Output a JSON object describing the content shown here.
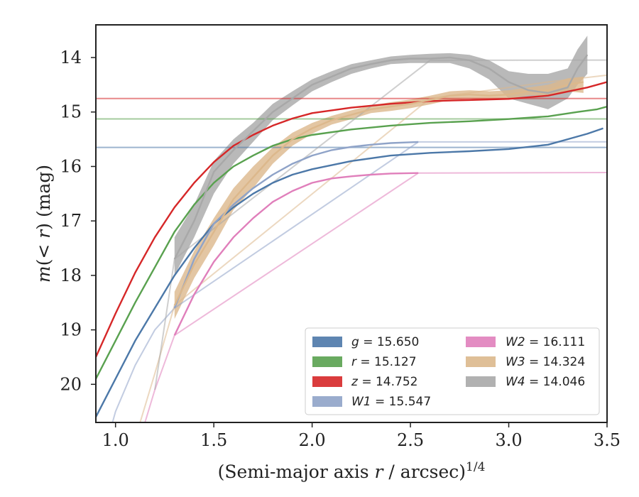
{
  "chart_data": {
    "type": "line",
    "xlabel": "(Semi-major axis r / arcsec)^{1/4}",
    "ylabel": "m(< r) (mag)",
    "xlim": [
      0.9,
      3.5
    ],
    "ylim": [
      20.7,
      13.4
    ],
    "y_inverted": true,
    "xticks": [
      "1.0",
      "1.5",
      "2.0",
      "2.5",
      "3.0",
      "3.5"
    ],
    "xtick_values": [
      1.0,
      1.5,
      2.0,
      2.5,
      3.0,
      3.5
    ],
    "yticks": [
      "14",
      "15",
      "16",
      "17",
      "18",
      "19",
      "20"
    ],
    "ytick_values": [
      14,
      15,
      16,
      17,
      18,
      19,
      20
    ],
    "legend_position": "lower-right",
    "legend_columns": 2,
    "series": [
      {
        "name": "g = 15.650",
        "color": "#4c78a8",
        "legend_label": "g = 15.650",
        "total": 15.65,
        "x": [
          0.9,
          1.0,
          1.1,
          1.2,
          1.3,
          1.4,
          1.5,
          1.6,
          1.7,
          1.8,
          1.9,
          2.0,
          2.2,
          2.4,
          2.6,
          2.8,
          3.0,
          3.2,
          3.3,
          3.4,
          3.48
        ],
        "y": [
          20.6,
          19.9,
          19.2,
          18.6,
          18.0,
          17.5,
          17.05,
          16.75,
          16.5,
          16.3,
          16.15,
          16.05,
          15.9,
          15.8,
          15.75,
          15.72,
          15.68,
          15.6,
          15.5,
          15.4,
          15.3
        ]
      },
      {
        "name": "r = 15.127",
        "color": "#59a14f",
        "legend_label": "r = 15.127",
        "total": 15.127,
        "x": [
          0.9,
          1.0,
          1.1,
          1.2,
          1.3,
          1.4,
          1.5,
          1.6,
          1.7,
          1.8,
          1.9,
          2.0,
          2.2,
          2.4,
          2.6,
          2.8,
          3.0,
          3.2,
          3.35,
          3.45,
          3.5
        ],
        "y": [
          19.9,
          19.2,
          18.5,
          17.85,
          17.2,
          16.7,
          16.3,
          16.0,
          15.8,
          15.62,
          15.5,
          15.42,
          15.32,
          15.25,
          15.2,
          15.17,
          15.13,
          15.08,
          15.0,
          14.95,
          14.9
        ]
      },
      {
        "name": "z = 14.752",
        "color": "#d62728",
        "legend_label": "z = 14.752",
        "total": 14.752,
        "x": [
          0.9,
          1.0,
          1.1,
          1.2,
          1.3,
          1.4,
          1.5,
          1.6,
          1.7,
          1.8,
          1.9,
          2.0,
          2.2,
          2.4,
          2.6,
          2.8,
          3.0,
          3.2,
          3.4,
          3.5
        ],
        "y": [
          19.5,
          18.7,
          17.95,
          17.3,
          16.75,
          16.3,
          15.92,
          15.62,
          15.42,
          15.25,
          15.12,
          15.02,
          14.92,
          14.85,
          14.8,
          14.78,
          14.76,
          14.7,
          14.55,
          14.45
        ]
      },
      {
        "name": "W1 = 15.547",
        "color": "#8fa3c8",
        "legend_label": "W1 = 15.547",
        "total": 15.547,
        "x": [
          1.3,
          1.4,
          1.5,
          1.6,
          1.7,
          1.8,
          1.9,
          2.0,
          2.1,
          2.2,
          2.3,
          2.4,
          2.54
        ],
        "y": [
          18.6,
          17.7,
          17.05,
          16.7,
          16.4,
          16.15,
          15.95,
          15.8,
          15.7,
          15.64,
          15.6,
          15.57,
          15.55
        ]
      },
      {
        "name": "W2 = 16.111",
        "color": "#e07fbb",
        "legend_label": "W2 = 16.111",
        "total": 16.111,
        "x": [
          1.3,
          1.4,
          1.5,
          1.6,
          1.7,
          1.8,
          1.9,
          2.0,
          2.1,
          2.2,
          2.3,
          2.4,
          2.54
        ],
        "y": [
          19.1,
          18.35,
          17.75,
          17.3,
          16.95,
          16.65,
          16.45,
          16.3,
          16.22,
          16.18,
          16.15,
          16.13,
          16.12
        ]
      },
      {
        "name": "W3 = 14.324",
        "color": "#dcb88c",
        "legend_label": "W3 = 14.324",
        "total": 14.324,
        "x": [
          1.3,
          1.4,
          1.5,
          1.6,
          1.7,
          1.8,
          1.9,
          2.0,
          2.1,
          2.2,
          2.3,
          2.4,
          2.5,
          2.6,
          2.7,
          2.8,
          2.9,
          3.0,
          3.1,
          3.2,
          3.3,
          3.38
        ],
        "y": [
          18.55,
          17.8,
          17.2,
          16.6,
          16.2,
          15.8,
          15.5,
          15.3,
          15.15,
          15.05,
          14.95,
          14.9,
          14.85,
          14.78,
          14.7,
          14.68,
          14.7,
          14.68,
          14.62,
          14.6,
          14.5,
          14.45
        ]
      },
      {
        "name": "W4 = 14.046",
        "color": "#a8a8a8",
        "legend_label": "W4 = 14.046",
        "total": 14.046,
        "x": [
          1.3,
          1.4,
          1.5,
          1.6,
          1.7,
          1.8,
          1.9,
          2.0,
          2.1,
          2.2,
          2.3,
          2.4,
          2.5,
          2.6,
          2.7,
          2.8,
          2.9,
          3.0,
          3.1,
          3.2,
          3.3,
          3.35,
          3.4
        ],
        "y": [
          17.7,
          17.0,
          16.1,
          15.7,
          15.35,
          15.0,
          14.75,
          14.5,
          14.35,
          14.2,
          14.12,
          14.05,
          14.02,
          14.02,
          14.0,
          14.05,
          14.2,
          14.45,
          14.6,
          14.65,
          14.55,
          14.2,
          13.95
        ]
      }
    ],
    "bands": [
      {
        "series": "W4 = 14.046",
        "x": [
          1.3,
          1.4,
          1.5,
          1.6,
          1.7,
          1.8,
          1.9,
          2.0,
          2.1,
          2.2,
          2.3,
          2.4,
          2.5,
          2.6,
          2.7,
          2.8,
          2.9,
          3.0,
          3.1,
          3.2,
          3.3,
          3.35,
          3.4
        ],
        "lower": [
          17.3,
          16.7,
          15.9,
          15.5,
          15.2,
          14.85,
          14.62,
          14.4,
          14.25,
          14.12,
          14.05,
          13.98,
          13.95,
          13.93,
          13.92,
          13.95,
          14.05,
          14.25,
          14.3,
          14.3,
          14.2,
          13.85,
          13.6
        ],
        "upper": [
          18.0,
          17.3,
          16.5,
          15.95,
          15.55,
          15.15,
          14.88,
          14.62,
          14.45,
          14.3,
          14.2,
          14.12,
          14.1,
          14.1,
          14.1,
          14.2,
          14.4,
          14.75,
          14.85,
          14.95,
          14.75,
          14.5,
          14.3
        ]
      },
      {
        "series": "W3 = 14.324",
        "x": [
          1.3,
          1.4,
          1.5,
          1.6,
          1.7,
          1.8,
          1.9,
          2.0,
          2.1,
          2.2,
          2.3,
          2.4,
          2.5,
          2.6,
          2.7,
          2.8,
          2.9,
          3.0,
          3.1,
          3.2,
          3.3,
          3.38
        ],
        "lower": [
          18.3,
          17.55,
          16.95,
          16.4,
          16.0,
          15.65,
          15.38,
          15.2,
          15.07,
          14.97,
          14.88,
          14.82,
          14.77,
          14.7,
          14.62,
          14.6,
          14.62,
          14.6,
          14.55,
          14.5,
          14.38,
          14.35
        ],
        "upper": [
          18.8,
          18.05,
          17.45,
          16.8,
          16.4,
          15.95,
          15.62,
          15.4,
          15.23,
          15.13,
          15.02,
          14.98,
          14.93,
          14.86,
          14.78,
          14.76,
          14.78,
          14.76,
          14.69,
          14.7,
          14.62,
          14.65
        ]
      }
    ],
    "extrapolations": [
      {
        "series": "g = 15.650",
        "x": [
          0.9,
          3.5
        ],
        "y_start": 20.6,
        "y_const": 15.65
      },
      {
        "series": "r = 15.127",
        "x": [
          0.9,
          3.5
        ],
        "y_const": 15.127
      },
      {
        "series": "z = 14.752",
        "x": [
          0.9,
          3.5
        ],
        "y_const": 14.752
      },
      {
        "series": "W1 = 15.547",
        "x": [
          0.9,
          1.0,
          1.1,
          1.2,
          1.3,
          2.54,
          3.5
        ],
        "y": [
          21.8,
          20.5,
          19.65,
          19.0,
          18.6,
          15.55,
          15.547
        ]
      },
      {
        "series": "W2 = 16.111",
        "x": [
          1.0,
          1.1,
          1.15,
          1.2,
          1.3,
          2.54,
          3.5
        ],
        "y": [
          22.5,
          21.2,
          20.7,
          20.1,
          19.1,
          16.12,
          16.111
        ]
      },
      {
        "series": "W3 = 14.324",
        "x": [
          1.0,
          1.1,
          1.2,
          1.3,
          2.6,
          3.2,
          3.5
        ],
        "y": [
          22.3,
          21.0,
          19.8,
          18.55,
          14.75,
          14.45,
          14.324
        ]
      },
      {
        "series": "W4 = 14.046",
        "x": [
          1.2,
          1.3,
          2.6,
          3.5
        ],
        "y": [
          20.1,
          17.7,
          14.05,
          14.046
        ]
      }
    ]
  }
}
